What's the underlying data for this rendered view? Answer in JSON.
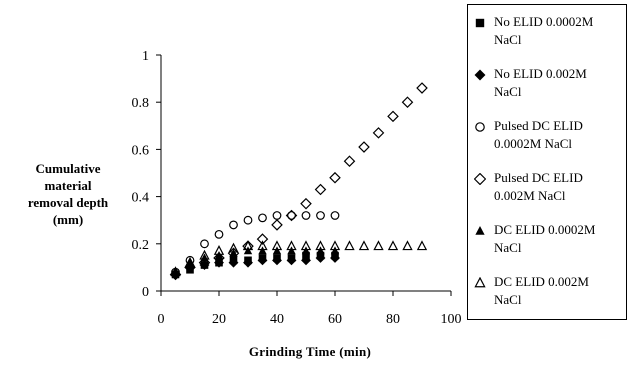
{
  "chart_data": {
    "type": "scatter",
    "xlabel": "Grinding Time (min)",
    "ylabel": "Cumulative material removal depth (mm)",
    "xlim": [
      0,
      100
    ],
    "ylim": [
      0,
      1
    ],
    "x_ticks": [
      "0",
      "20",
      "40",
      "60",
      "80",
      "100"
    ],
    "y_ticks": [
      "0",
      "0.2",
      "0.4",
      "0.6",
      "0.8",
      "1"
    ],
    "grid": false,
    "legend_position": "right",
    "series": [
      {
        "name": "No ELID 0.0002M NaCl",
        "marker": "filled-square",
        "x": [
          5,
          10,
          15,
          20,
          25,
          30,
          35,
          40,
          45,
          50,
          55,
          60
        ],
        "y": [
          0.07,
          0.09,
          0.11,
          0.12,
          0.13,
          0.13,
          0.14,
          0.14,
          0.14,
          0.15,
          0.15,
          0.15
        ]
      },
      {
        "name": "No ELID 0.002M NaCl",
        "marker": "filled-diamond",
        "x": [
          5,
          10,
          15,
          20,
          25,
          30,
          35,
          40,
          45,
          50,
          55,
          60
        ],
        "y": [
          0.07,
          0.1,
          0.11,
          0.12,
          0.12,
          0.12,
          0.13,
          0.13,
          0.13,
          0.13,
          0.14,
          0.14
        ]
      },
      {
        "name": "Pulsed DC ELID 0.0002M NaCl",
        "marker": "open-circle",
        "x": [
          5,
          10,
          15,
          20,
          25,
          30,
          35,
          40,
          45,
          50,
          55,
          60
        ],
        "y": [
          0.08,
          0.13,
          0.2,
          0.24,
          0.28,
          0.3,
          0.31,
          0.32,
          0.32,
          0.32,
          0.32,
          0.32
        ]
      },
      {
        "name": "Pulsed DC ELID 0.002M NaCl",
        "marker": "open-diamond",
        "x": [
          5,
          10,
          15,
          20,
          25,
          30,
          35,
          40,
          45,
          50,
          55,
          60,
          65,
          70,
          75,
          80,
          85,
          90
        ],
        "y": [
          0.07,
          0.1,
          0.12,
          0.14,
          0.16,
          0.19,
          0.22,
          0.28,
          0.32,
          0.37,
          0.43,
          0.48,
          0.55,
          0.61,
          0.67,
          0.74,
          0.8,
          0.86
        ]
      },
      {
        "name": "DC ELID 0.0002M NaCl",
        "marker": "filled-triangle",
        "x": [
          5,
          10,
          15,
          20,
          25,
          30,
          35,
          40,
          45,
          50,
          55,
          60
        ],
        "y": [
          0.08,
          0.12,
          0.14,
          0.15,
          0.16,
          0.17,
          0.17,
          0.17,
          0.17,
          0.17,
          0.17,
          0.17
        ]
      },
      {
        "name": "DC ELID 0.002M NaCl",
        "marker": "open-triangle",
        "x": [
          5,
          10,
          15,
          20,
          25,
          30,
          35,
          40,
          45,
          50,
          55,
          60,
          65,
          70,
          75,
          80,
          85,
          90
        ],
        "y": [
          0.08,
          0.12,
          0.15,
          0.17,
          0.18,
          0.19,
          0.19,
          0.19,
          0.19,
          0.19,
          0.19,
          0.19,
          0.19,
          0.19,
          0.19,
          0.19,
          0.19,
          0.19
        ]
      }
    ]
  },
  "axis_titles": {
    "y_lines": [
      "Cumulative",
      "material",
      "removal depth",
      "(mm)"
    ],
    "x": "Grinding  Time  (min)"
  },
  "legend": [
    {
      "label": "No ELID 0.0002M\nNaCl",
      "marker": "filled-square"
    },
    {
      "label": "No ELID 0.002M\nNaCl",
      "marker": "filled-diamond"
    },
    {
      "label": "Pulsed DC ELID\n0.0002M  NaCl",
      "marker": "open-circle"
    },
    {
      "label": "Pulsed DC ELID\n0.002M  NaCl",
      "marker": "open-diamond"
    },
    {
      "label": "DC ELID 0.0002M\nNaCl",
      "marker": "filled-triangle"
    },
    {
      "label": "DC ELID 0.002M\nNaCl",
      "marker": "open-triangle"
    }
  ]
}
